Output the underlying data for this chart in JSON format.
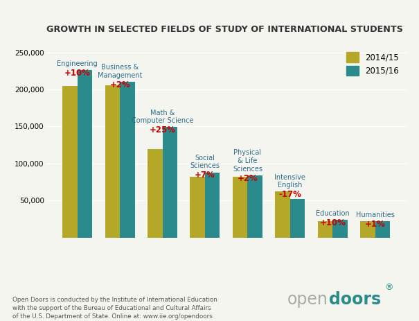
{
  "title": "GROWTH IN SELECTED FIELDS OF STUDY OF INTERNATIONAL STUDENTS",
  "cat_labels": [
    "Engineering",
    "Business &\nManagement",
    "Math &\nComputer Science",
    "Social\nSciences",
    "Physical\n& Life\nSciences",
    "Intensive\nEnglish",
    "Education",
    "Humanities"
  ],
  "values_2014": [
    205000,
    206000,
    119000,
    82000,
    82000,
    62000,
    22000,
    22000
  ],
  "values_2015": [
    226000,
    210000,
    149000,
    88000,
    84000,
    52000,
    24000,
    22000
  ],
  "growth_labels": [
    "+10%",
    "+2%",
    "+25%",
    "+7%",
    "+2%",
    "-17%",
    "+10%",
    "+1%"
  ],
  "color_2014": "#b5a828",
  "color_2015": "#2a8a8c",
  "color_growth": "#cc0000",
  "legend_2014": "2014/15",
  "legend_2015": "2015/16",
  "ylim": [
    0,
    260000
  ],
  "yticks": [
    0,
    50000,
    100000,
    150000,
    200000,
    250000
  ],
  "background_color": "#f5f5f0",
  "title_color": "#333333",
  "label_color": "#2a6b8a",
  "footer_text": "Open Doors is conducted by the Institute of International Education\nwith the support of the Bureau of Educational and Cultural Affairs\nof the U.S. Department of State. Online at: www.iie.org/opendoors",
  "logo_open_color": "#aaaaaa",
  "logo_doors_color": "#2a8a8c"
}
